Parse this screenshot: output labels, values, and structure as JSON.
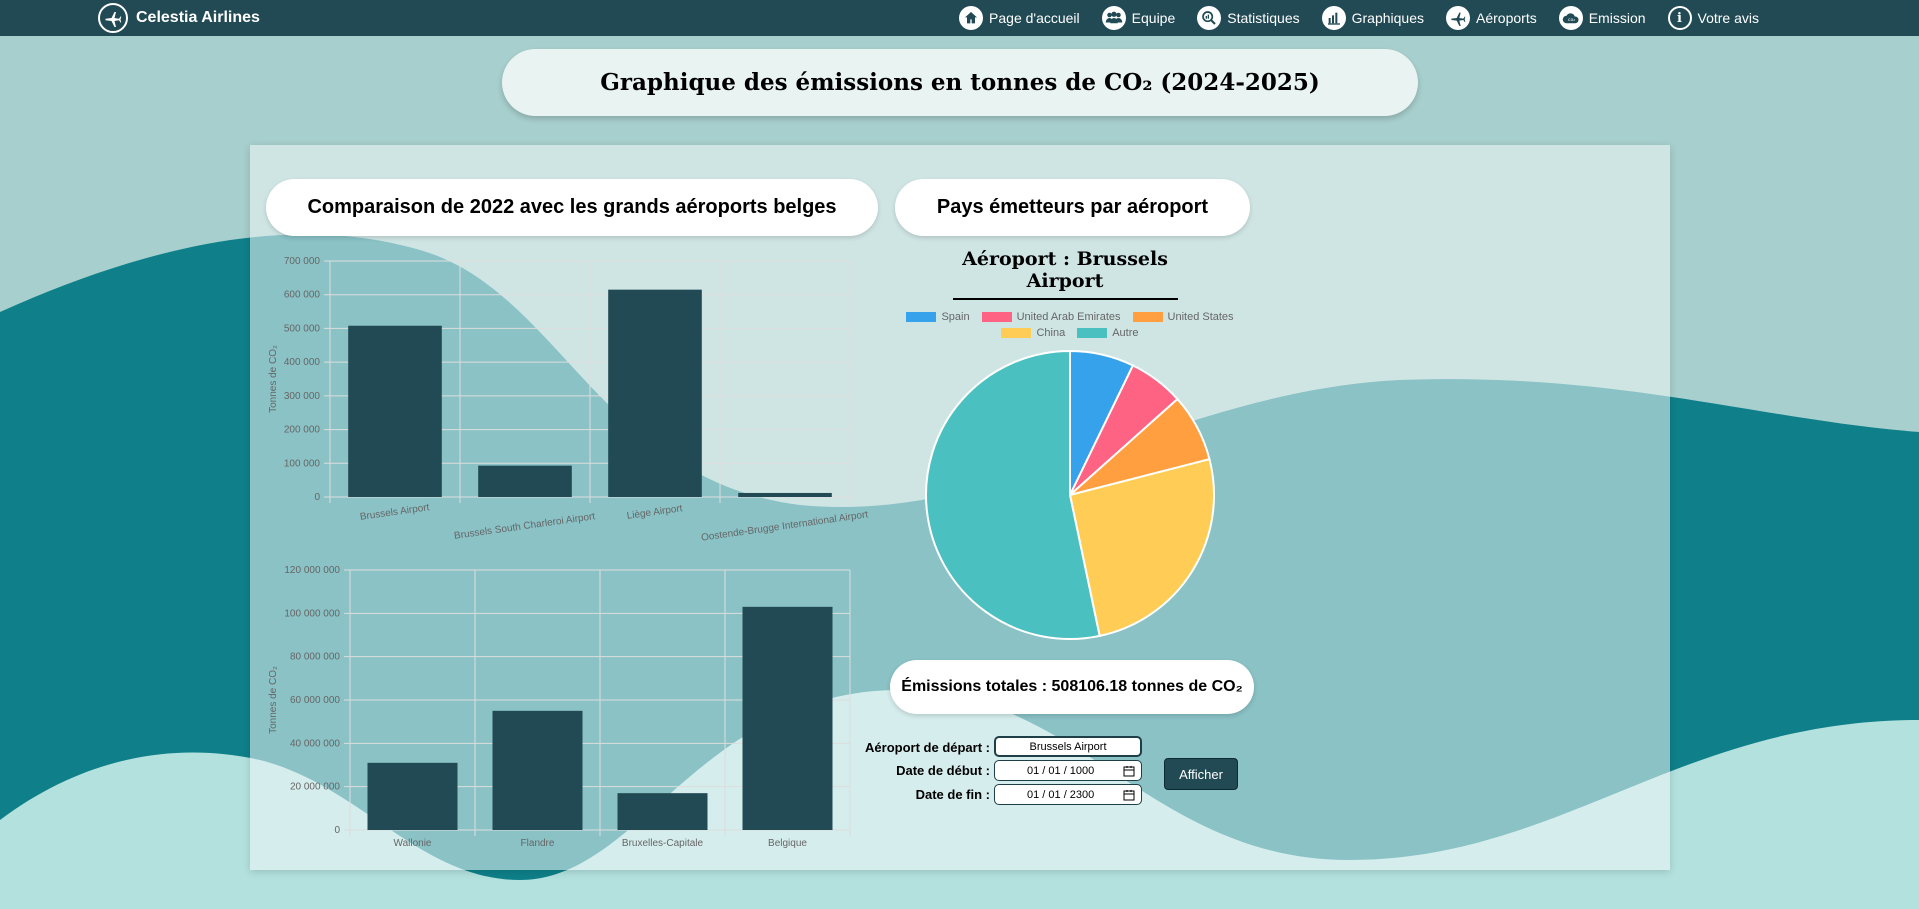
{
  "nav": {
    "brand": "Celestia Airlines",
    "brand_icon": "plane-icon",
    "links": [
      {
        "label": "Page d'accueil",
        "icon": "home-icon"
      },
      {
        "label": "Equipe",
        "icon": "team-icon"
      },
      {
        "label": "Statistiques",
        "icon": "stats-icon"
      },
      {
        "label": "Graphiques",
        "icon": "chart-icon"
      },
      {
        "label": "Aéroports",
        "icon": "plane-icon"
      },
      {
        "label": "Emission",
        "icon": "co2-cloud-icon"
      },
      {
        "label": "Votre avis",
        "icon": "info-icon"
      }
    ]
  },
  "page_title": "Graphique des émissions en tonnes de CO₂ (2024-2025)",
  "sections": {
    "comparison_title": "Comparaison de 2022 avec les grands aéroports belges",
    "countries_title": "Pays émetteurs par aéroport"
  },
  "chart_data": [
    {
      "type": "bar",
      "categories": [
        "Brussels Airport",
        "Brussels South Charleroi Airport",
        "Liège Airport",
        "Oostende-Brugge International Airport"
      ],
      "values": [
        508000,
        93000,
        615000,
        12000
      ],
      "ylabel": "Tonnes de CO₂",
      "ylim": [
        0,
        700000
      ],
      "yticks": [
        "0",
        "100 000",
        "200 000",
        "300 000",
        "400 000",
        "500 000",
        "600 000",
        "700 000"
      ],
      "grid": true,
      "color": "#214a54"
    },
    {
      "type": "bar",
      "categories": [
        "Wallonie",
        "Flandre",
        "Bruxelles-Capitale",
        "Belgique"
      ],
      "values": [
        31000000,
        55000000,
        17000000,
        103000000
      ],
      "ylabel": "Tonnes de CO₂",
      "ylim": [
        0,
        120000000
      ],
      "yticks": [
        "0",
        "20 000 000",
        "40 000 000",
        "60 000 000",
        "80 000 000",
        "100 000 000",
        "120 000 000"
      ],
      "grid": true,
      "color": "#214a54"
    },
    {
      "type": "pie",
      "title": "Aéroport : Brussels Airport",
      "legend_position": "top",
      "labels": [
        "Spain",
        "United Arab Emirates",
        "United States",
        "China",
        "Autre"
      ],
      "values": [
        7.2,
        6.2,
        7.6,
        25.7,
        53.3
      ],
      "colors": [
        "#36a2eb",
        "#ff6384",
        "#ff9f40",
        "#ffcd56",
        "#4bc0c0"
      ]
    }
  ],
  "totals": {
    "text": "Émissions totales : 508106.18 tonnes de CO₂"
  },
  "form": {
    "departure_label": "Aéroport de départ :",
    "departure_value": "Brussels Airport",
    "start_label": "Date de début :",
    "start_value": "01 / 01 / 1000",
    "end_label": "Date de fin :",
    "end_value": "01 / 01 / 2300",
    "submit_label": "Afficher"
  }
}
